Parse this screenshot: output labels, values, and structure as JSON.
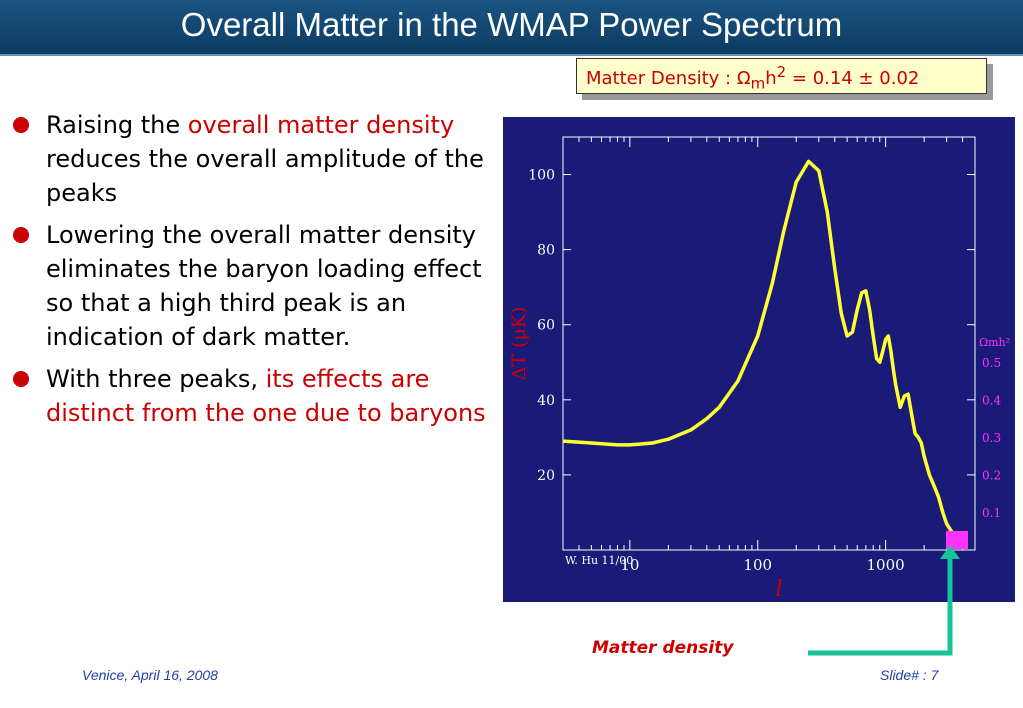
{
  "title": "Overall Matter in the WMAP Power Spectrum",
  "bullets": [
    {
      "parts": [
        {
          "text": "Raising the ",
          "highlight": false
        },
        {
          "text": "overall matter density",
          "highlight": true
        },
        {
          "text": " reduces the overall amplitude of the peaks",
          "highlight": false
        }
      ]
    },
    {
      "parts": [
        {
          "text": "Lowering the overall matter density eliminates the baryon loading effect so that a high third peak is an indication of dark matter.",
          "highlight": false
        }
      ]
    },
    {
      "parts": [
        {
          "text": "With three peaks, ",
          "highlight": false
        },
        {
          "text": "its effects are distinct from the one due to baryons",
          "highlight": true
        }
      ]
    }
  ],
  "callout": {
    "prefix": "Matter Density : ",
    "omega": "Ω",
    "sub": "m",
    "h": "h",
    "sup": "2",
    "rest": " = 0.14 ± 0.02"
  },
  "annotation": "Matter density",
  "footer": {
    "left": "Venice, April 16, 2008",
    "right": "Slide# : 7"
  },
  "colors": {
    "accent": "#cc0000",
    "curve": "#ffff33",
    "legend": "#ff33ff",
    "arrow": "#19c39a",
    "plot_bg": "#1a1a78"
  },
  "chart_data": {
    "type": "line",
    "xscale": "log",
    "xlabel": "l",
    "ylabel": "ΔT (μK)",
    "credit": "W. Hu 11/00",
    "x_ticks": [
      10,
      100,
      1000
    ],
    "y_ticks": [
      20,
      40,
      60,
      80,
      100
    ],
    "xlim": [
      3,
      5000
    ],
    "ylim": [
      0,
      110
    ],
    "legend_title": "Ωmh²",
    "legend_values": [
      "0.5",
      "0.4",
      "0.3",
      "0.2",
      "0.1"
    ],
    "series": [
      {
        "x": [
          3,
          5,
          8,
          10,
          15,
          20,
          30,
          40,
          50,
          70,
          100,
          130,
          160,
          200,
          250,
          300,
          350,
          400,
          450,
          500,
          550,
          600,
          650,
          700,
          750,
          800,
          850,
          900,
          950,
          1000,
          1050,
          1100,
          1150,
          1200,
          1300,
          1400,
          1500,
          1600,
          1700,
          1800,
          1900,
          2000,
          2200,
          2400,
          2600,
          2800,
          3000,
          3200,
          3500,
          4000
        ],
        "y": [
          29,
          28.5,
          28,
          28,
          28.5,
          29.5,
          32,
          35,
          38,
          45,
          57,
          71,
          85,
          98,
          103.5,
          101,
          90,
          75,
          63,
          57,
          58,
          64,
          68.5,
          69,
          64,
          57,
          51,
          50,
          53,
          56,
          57,
          53,
          48,
          44,
          38,
          41,
          41.5,
          36,
          31,
          30,
          28.5,
          25,
          20,
          17,
          14,
          10,
          7,
          5.5,
          3.5,
          1.5
        ]
      }
    ]
  }
}
